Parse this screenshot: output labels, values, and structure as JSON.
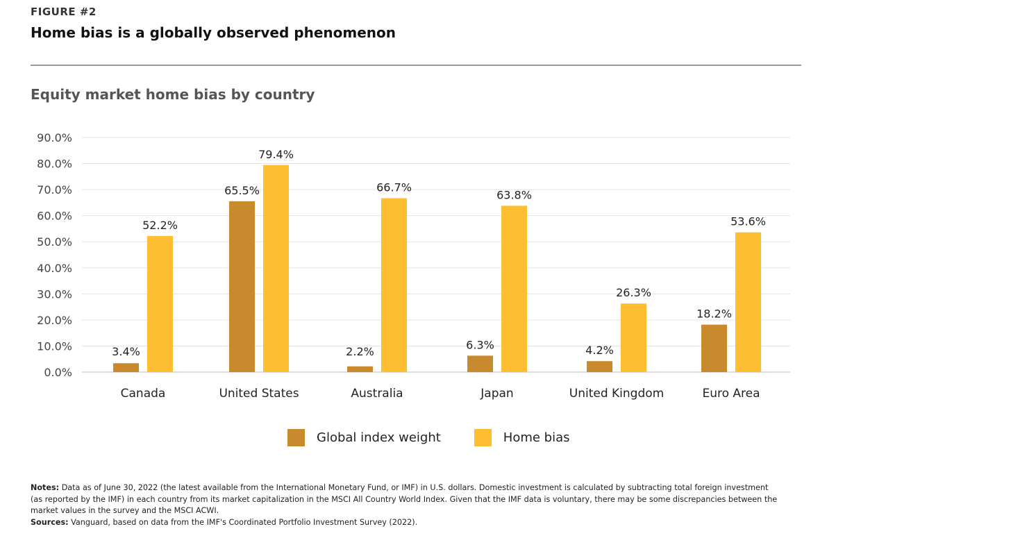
{
  "figure": {
    "label": "FIGURE #2",
    "title": "Home bias is a globally observed phenomenon"
  },
  "chart_data": {
    "type": "bar",
    "title": "Equity market home bias by country",
    "categories": [
      "Canada",
      "United States",
      "Australia",
      "Japan",
      "United Kingdom",
      "Euro Area"
    ],
    "series": [
      {
        "name": "Global index weight",
        "values": [
          3.4,
          65.5,
          2.2,
          6.3,
          4.2,
          18.2
        ],
        "labels": [
          "3.4%",
          "65.5%",
          "2.2%",
          "6.3%",
          "4.2%",
          "18.2%"
        ],
        "color": "#C98A2E"
      },
      {
        "name": "Home bias",
        "values": [
          52.2,
          79.4,
          66.7,
          63.8,
          26.3,
          53.6
        ],
        "labels": [
          "52.2%",
          "79.4%",
          "66.7%",
          "63.8%",
          "26.3%",
          "53.6%"
        ],
        "color": "#FDBE32"
      }
    ],
    "y_ticks": [
      "0.0%",
      "10.0%",
      "20.0%",
      "30.0%",
      "40.0%",
      "50.0%",
      "60.0%",
      "70.0%",
      "80.0%",
      "90.0%"
    ],
    "ylim": [
      0,
      90
    ],
    "grid": true,
    "legend_position": "bottom"
  },
  "notes": {
    "notes_label": "Notes:",
    "notes_text": "Data as of June 30, 2022 (the latest available from the International Monetary Fund, or IMF) in U.S. dollars. Domestic investment is calculated by subtracting total foreign investment (as reported by the IMF) in each country from its market capitalization in the MSCI All Country World Index. Given that the IMF data is voluntary, there may be some discrepancies between the market values in the survey and the MSCI ACWI.",
    "sources_label": "Sources:",
    "sources_text": "Vanguard, based on data from the IMF's Coordinated Portfolio Investment Survey (2022)."
  }
}
